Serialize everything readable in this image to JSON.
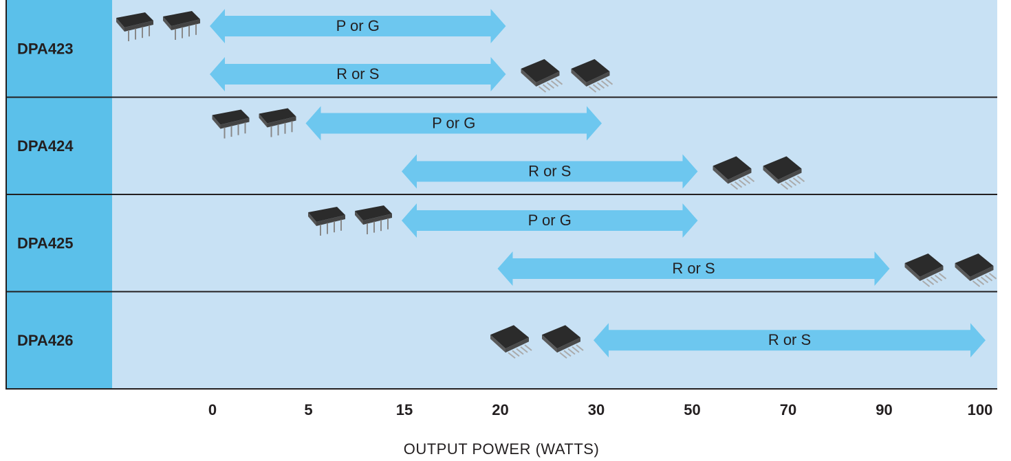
{
  "chart_data": {
    "type": "range",
    "x_label": "OUTPUT POWER (WATTS)",
    "xlim": [
      0,
      100
    ],
    "xticks": [
      0,
      5,
      15,
      20,
      30,
      50,
      70,
      90,
      100
    ],
    "rows": [
      {
        "name": "DPA423",
        "ranges": [
          {
            "name": "P or G",
            "values": [
              0,
              20
            ]
          },
          {
            "name": "R or S",
            "values": [
              0,
              20
            ]
          }
        ]
      },
      {
        "name": "DPA424",
        "ranges": [
          {
            "name": "P or G",
            "values": [
              5,
              30
            ]
          },
          {
            "name": "R or S",
            "values": [
              15,
              50
            ]
          }
        ]
      },
      {
        "name": "DPA425",
        "ranges": [
          {
            "name": "P or G",
            "values": [
              15,
              50
            ]
          },
          {
            "name": "R or S",
            "values": [
              20,
              90
            ]
          }
        ]
      },
      {
        "name": "DPA426",
        "ranges": [
          {
            "name": "R or S",
            "values": [
              30,
              100
            ]
          }
        ]
      }
    ],
    "colors": {
      "label_column": "#5bc0ea",
      "plot": "#c8e1f4",
      "arrow": "#6dc7ef"
    }
  }
}
